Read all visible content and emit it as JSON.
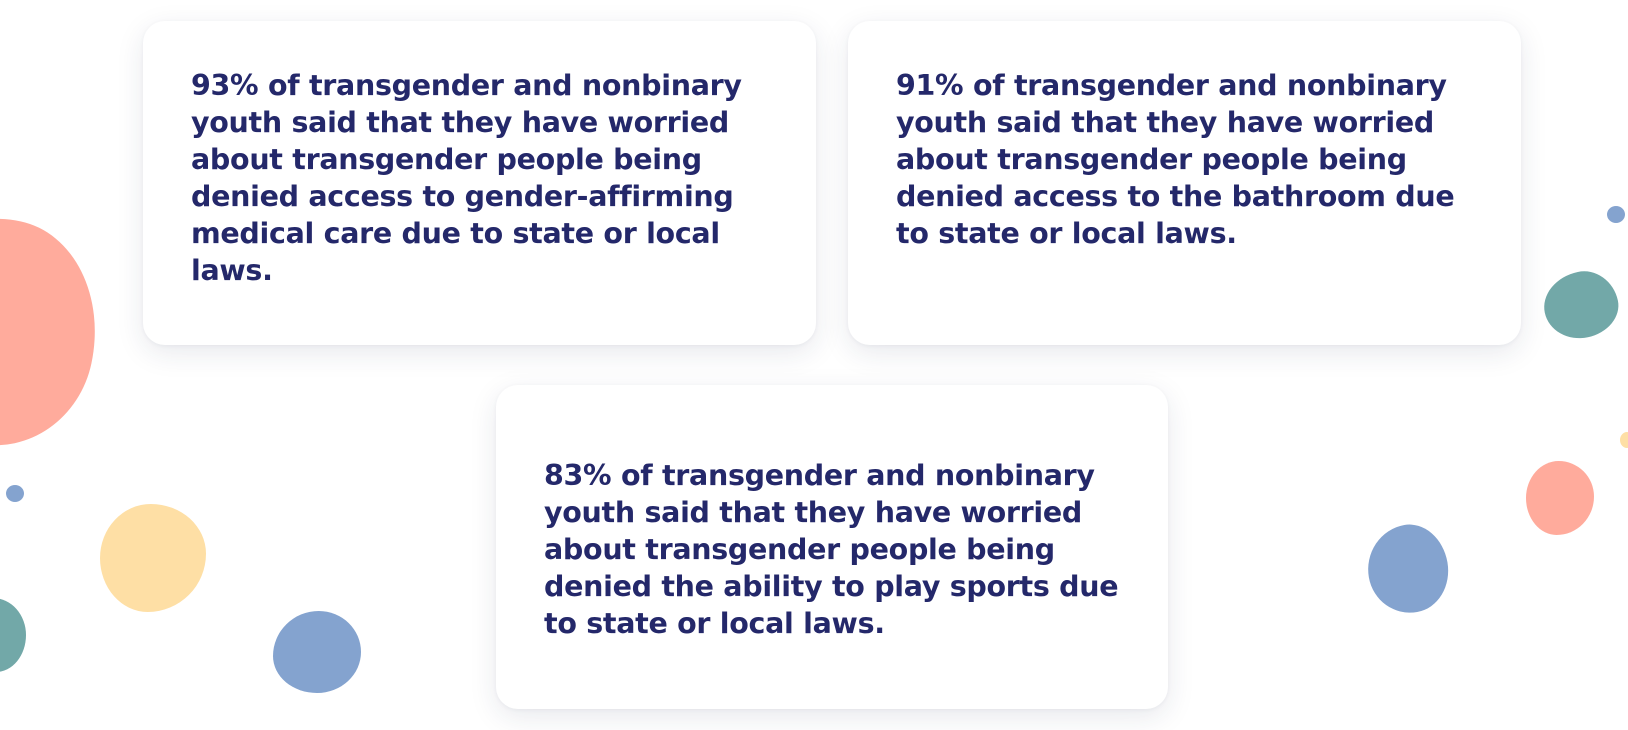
{
  "colors": {
    "text": "#24286a",
    "coral": "#ffab9c",
    "teal": "#72a8a8",
    "blue": "#84a3cf",
    "yellow": "#fedfa5"
  },
  "cards": [
    {
      "text": "93% of transgender and nonbinary youth said that they have worried about transgender people being denied access to gender-affirming medical care due to state or local laws."
    },
    {
      "text": "91% of transgender and nonbinary youth said that they have worried about transgender people being denied access to the bathroom due to state or local laws."
    },
    {
      "text": "83% of transgender and nonbinary youth said that they have worried about transgender people being denied the ability to play sports due to state or local laws."
    }
  ]
}
